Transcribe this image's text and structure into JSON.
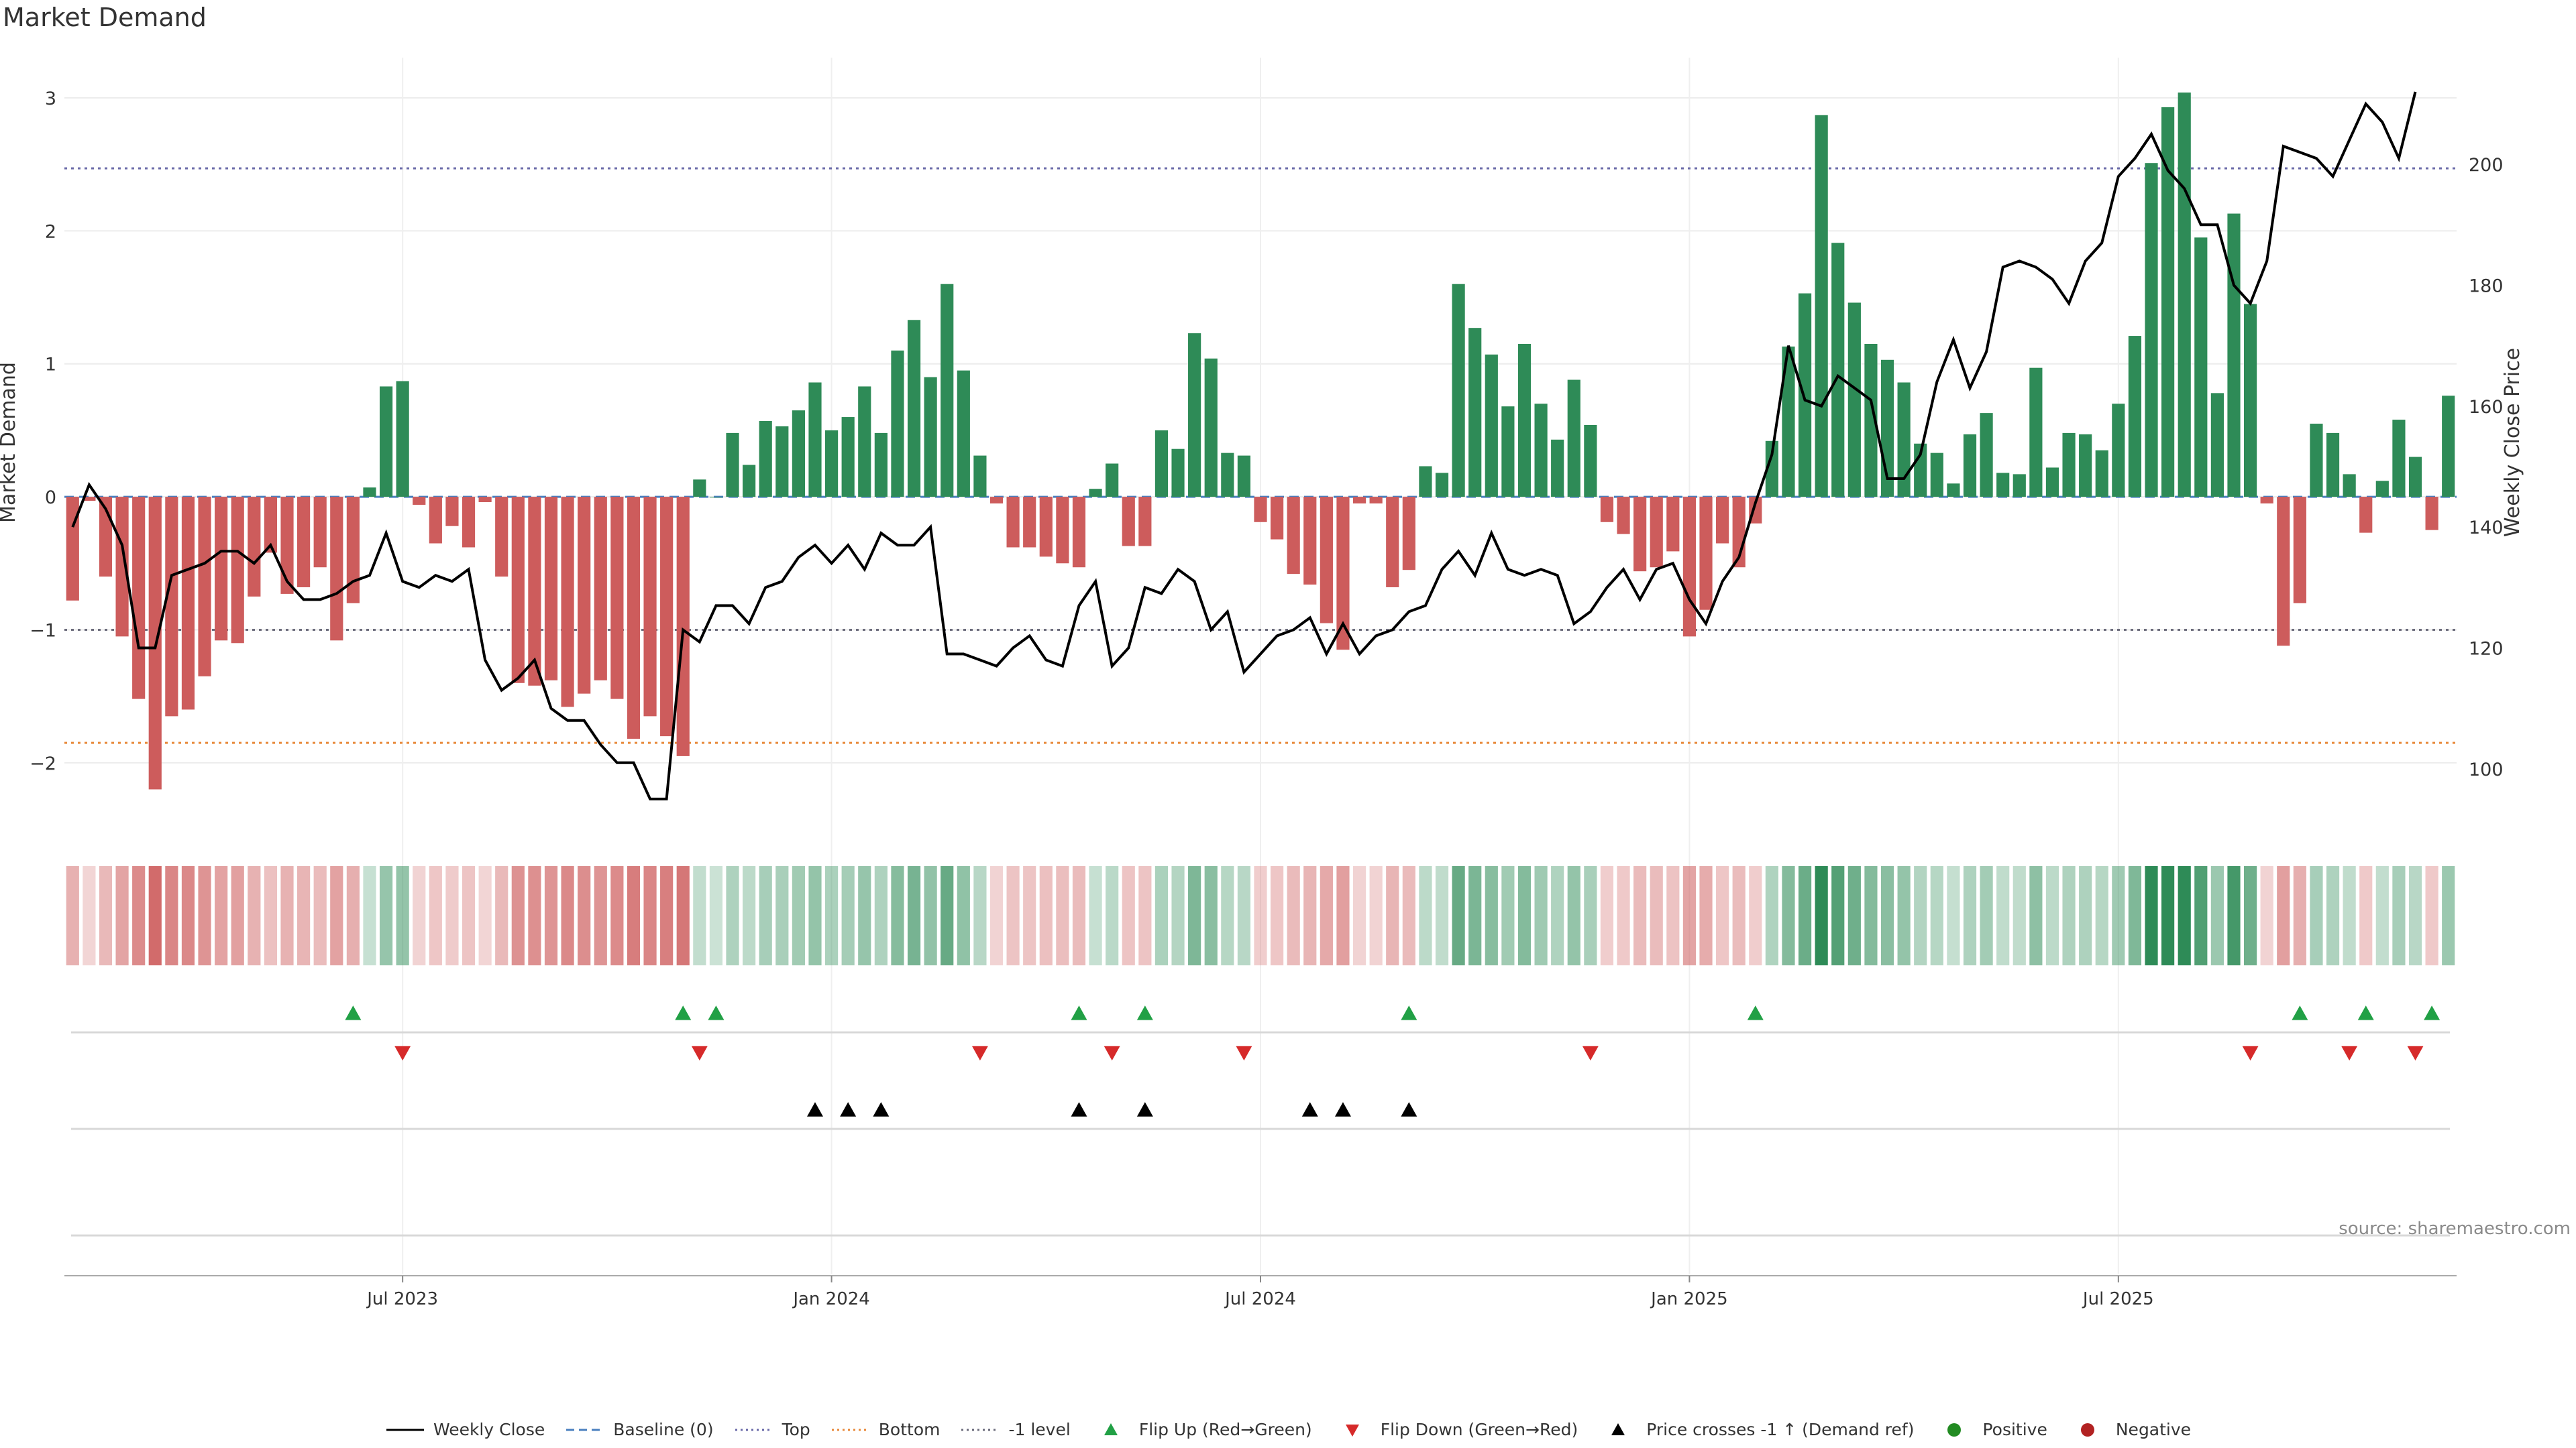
{
  "header": {
    "title": "Market Demand",
    "source": "source: sharemaestro.com"
  },
  "colors": {
    "positive": "#2e8b57",
    "negative": "#cd5c5c",
    "price": "#000000",
    "top": "#6a6aa8",
    "bottom": "#e8893a",
    "minus1": "#6b6b7b",
    "flip_up": "#21a045",
    "flip_down": "#d62a2a",
    "cross": "#000000",
    "dot_pos": "#228b22",
    "dot_neg": "#b22222"
  },
  "legend": [
    {
      "key": "weekly_close",
      "label": "Weekly Close",
      "kind": "line"
    },
    {
      "key": "baseline",
      "label": "Baseline (0)",
      "kind": "dash"
    },
    {
      "key": "top",
      "label": "Top",
      "kind": "dot"
    },
    {
      "key": "bottom",
      "label": "Bottom",
      "kind": "dot"
    },
    {
      "key": "minus1",
      "label": "-1 level",
      "kind": "dot"
    },
    {
      "key": "flip_up",
      "label": "Flip Up (Red→Green)",
      "kind": "tri-up"
    },
    {
      "key": "flip_down",
      "label": "Flip Down (Green→Red)",
      "kind": "tri-down"
    },
    {
      "key": "cross",
      "label": "Price crosses -1 ↑ (Demand ref)",
      "kind": "tri-up-black"
    },
    {
      "key": "dot_pos",
      "label": "Positive",
      "kind": "dot-circle"
    },
    {
      "key": "dot_neg",
      "label": "Negative",
      "kind": "dot-circle"
    }
  ],
  "chart_data": {
    "type": "bar",
    "title": "Market Demand",
    "ylabel": "Market Demand",
    "y2label": "Weekly Close Price",
    "ylim": [
      -2.5,
      3.0
    ],
    "y2lim": [
      90,
      211
    ],
    "yticks": [
      -2,
      -1,
      0,
      1,
      2,
      3
    ],
    "yticks_labels": [
      "−2",
      "−1",
      "0",
      "1",
      "2",
      "3"
    ],
    "y2ticks": [
      100,
      120,
      140,
      160,
      180,
      200
    ],
    "xticks": [
      {
        "index": 20,
        "label": "Jul 2023"
      },
      {
        "index": 46,
        "label": "Jan 2024"
      },
      {
        "index": 72,
        "label": "Jul 2024"
      },
      {
        "index": 98,
        "label": "Jan 2025"
      },
      {
        "index": 124,
        "label": "Jul 2025"
      }
    ],
    "reference_lines": {
      "baseline": 0,
      "top": 2.47,
      "bottom": -1.85,
      "minus1": -1.0
    },
    "demand": [
      -0.78,
      -0.03,
      -0.6,
      -1.05,
      -1.52,
      -2.2,
      -1.65,
      -1.6,
      -1.35,
      -1.08,
      -1.1,
      -0.75,
      -0.42,
      -0.73,
      -0.68,
      -0.53,
      -1.08,
      -0.8,
      0.07,
      0.83,
      0.87,
      -0.06,
      -0.35,
      -0.22,
      -0.38,
      -0.04,
      -0.6,
      -1.4,
      -1.42,
      -1.38,
      -1.58,
      -1.48,
      -1.38,
      -1.52,
      -1.82,
      -1.65,
      -1.8,
      -1.95,
      0.13,
      0.0,
      0.48,
      0.24,
      0.57,
      0.53,
      0.65,
      0.86,
      0.5,
      0.6,
      0.83,
      0.48,
      1.1,
      1.33,
      0.9,
      1.6,
      0.95,
      0.31,
      -0.05,
      -0.38,
      -0.38,
      -0.45,
      -0.5,
      -0.53,
      0.06,
      0.25,
      -0.37,
      -0.37,
      0.5,
      0.36,
      1.23,
      1.04,
      0.33,
      0.31,
      -0.19,
      -0.32,
      -0.58,
      -0.66,
      -0.95,
      -1.15,
      -0.05,
      -0.05,
      -0.68,
      -0.55,
      0.23,
      0.18,
      1.6,
      1.27,
      1.07,
      0.68,
      1.15,
      0.7,
      0.43,
      0.88,
      0.54,
      -0.19,
      -0.28,
      -0.56,
      -0.53,
      -0.41,
      -1.05,
      -0.85,
      -0.35,
      -0.53,
      -0.2,
      0.42,
      1.13,
      1.53,
      2.87,
      1.91,
      1.46,
      1.15,
      1.03,
      0.86,
      0.4,
      0.33,
      0.1,
      0.47,
      0.63,
      0.18,
      0.17,
      0.97,
      0.22,
      0.48,
      0.47,
      0.35,
      0.7,
      1.21,
      2.51,
      2.93,
      3.04,
      1.95,
      0.78,
      2.13,
      1.45,
      -0.05,
      -1.12,
      -0.8,
      0.55,
      0.48,
      0.17,
      -0.27,
      0.12,
      0.58,
      0.3,
      -0.25,
      0.76
    ],
    "close": [
      140,
      147,
      143,
      137,
      120,
      120,
      132,
      133,
      134,
      136,
      136,
      134,
      137,
      131,
      128,
      128,
      129,
      131,
      132,
      139,
      131,
      130,
      132,
      131,
      133,
      118,
      113,
      115,
      118,
      110,
      108,
      108,
      104,
      101,
      101,
      95,
      95,
      123,
      121,
      127,
      127,
      124,
      130,
      131,
      135,
      137,
      134,
      137,
      133,
      139,
      137,
      137,
      140,
      119,
      119,
      118,
      117,
      120,
      122,
      118,
      117,
      127,
      131,
      117,
      120,
      130,
      129,
      133,
      131,
      123,
      126,
      116,
      119,
      122,
      123,
      125,
      119,
      124,
      119,
      122,
      123,
      126,
      127,
      133,
      136,
      132,
      139,
      133,
      132,
      133,
      132,
      124,
      126,
      130,
      133,
      128,
      133,
      134,
      128,
      124,
      131,
      135,
      144,
      152,
      170,
      161,
      160,
      165,
      163,
      161,
      148,
      148,
      152,
      164,
      171,
      163,
      169,
      183,
      184,
      183,
      181,
      177,
      184,
      187,
      198,
      201,
      205,
      199,
      196,
      190,
      190,
      180,
      177,
      184,
      203,
      202,
      201,
      198,
      204,
      210,
      207,
      201,
      212
    ],
    "flip_up_idx": [
      17,
      37,
      39,
      61,
      65,
      81,
      102,
      135,
      139,
      143
    ],
    "flip_down_idx": [
      20,
      38,
      55,
      63,
      71,
      92,
      132,
      138,
      142
    ],
    "cross_idx": [
      45,
      47,
      49,
      61,
      65,
      75,
      77,
      81
    ]
  }
}
